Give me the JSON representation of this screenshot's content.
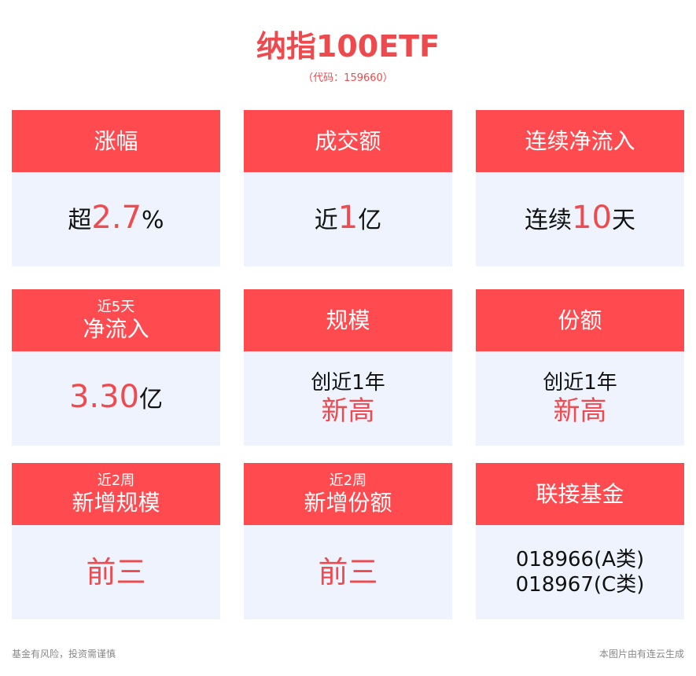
{
  "header": {
    "title": "纳指100ETF",
    "code": "（代码：159660）"
  },
  "colors": {
    "accent": "#ff4b4f",
    "value_red": "#f04a4e",
    "card_bg": "#eef3fd"
  },
  "cards": [
    {
      "small": "",
      "label": "涨幅",
      "prefix": "超",
      "value": "2.7",
      "suffix": "%"
    },
    {
      "small": "",
      "label": "成交额",
      "prefix": "近",
      "value": "1",
      "suffix": "亿"
    },
    {
      "small": "",
      "label": "连续净流入",
      "prefix": "连续",
      "value": "10",
      "suffix": "天"
    },
    {
      "small": "近5天",
      "label": "净流入",
      "prefix": "",
      "value": "3.30",
      "suffix": "亿"
    },
    {
      "small": "",
      "label": "规模",
      "line1": "创近1年",
      "line2": "新高"
    },
    {
      "small": "",
      "label": "份额",
      "line1": "创近1年",
      "line2": "新高"
    },
    {
      "small": "近2周",
      "label": "新增规模",
      "value": "前三"
    },
    {
      "small": "近2周",
      "label": "新增份额",
      "value": "前三"
    },
    {
      "small": "",
      "label": "联接基金",
      "line1": "018966(A类)",
      "line2": "018967(C类)"
    }
  ],
  "footer": {
    "left": "基金有风险，投资需谨慎",
    "right": "本图片由有连云生成"
  }
}
